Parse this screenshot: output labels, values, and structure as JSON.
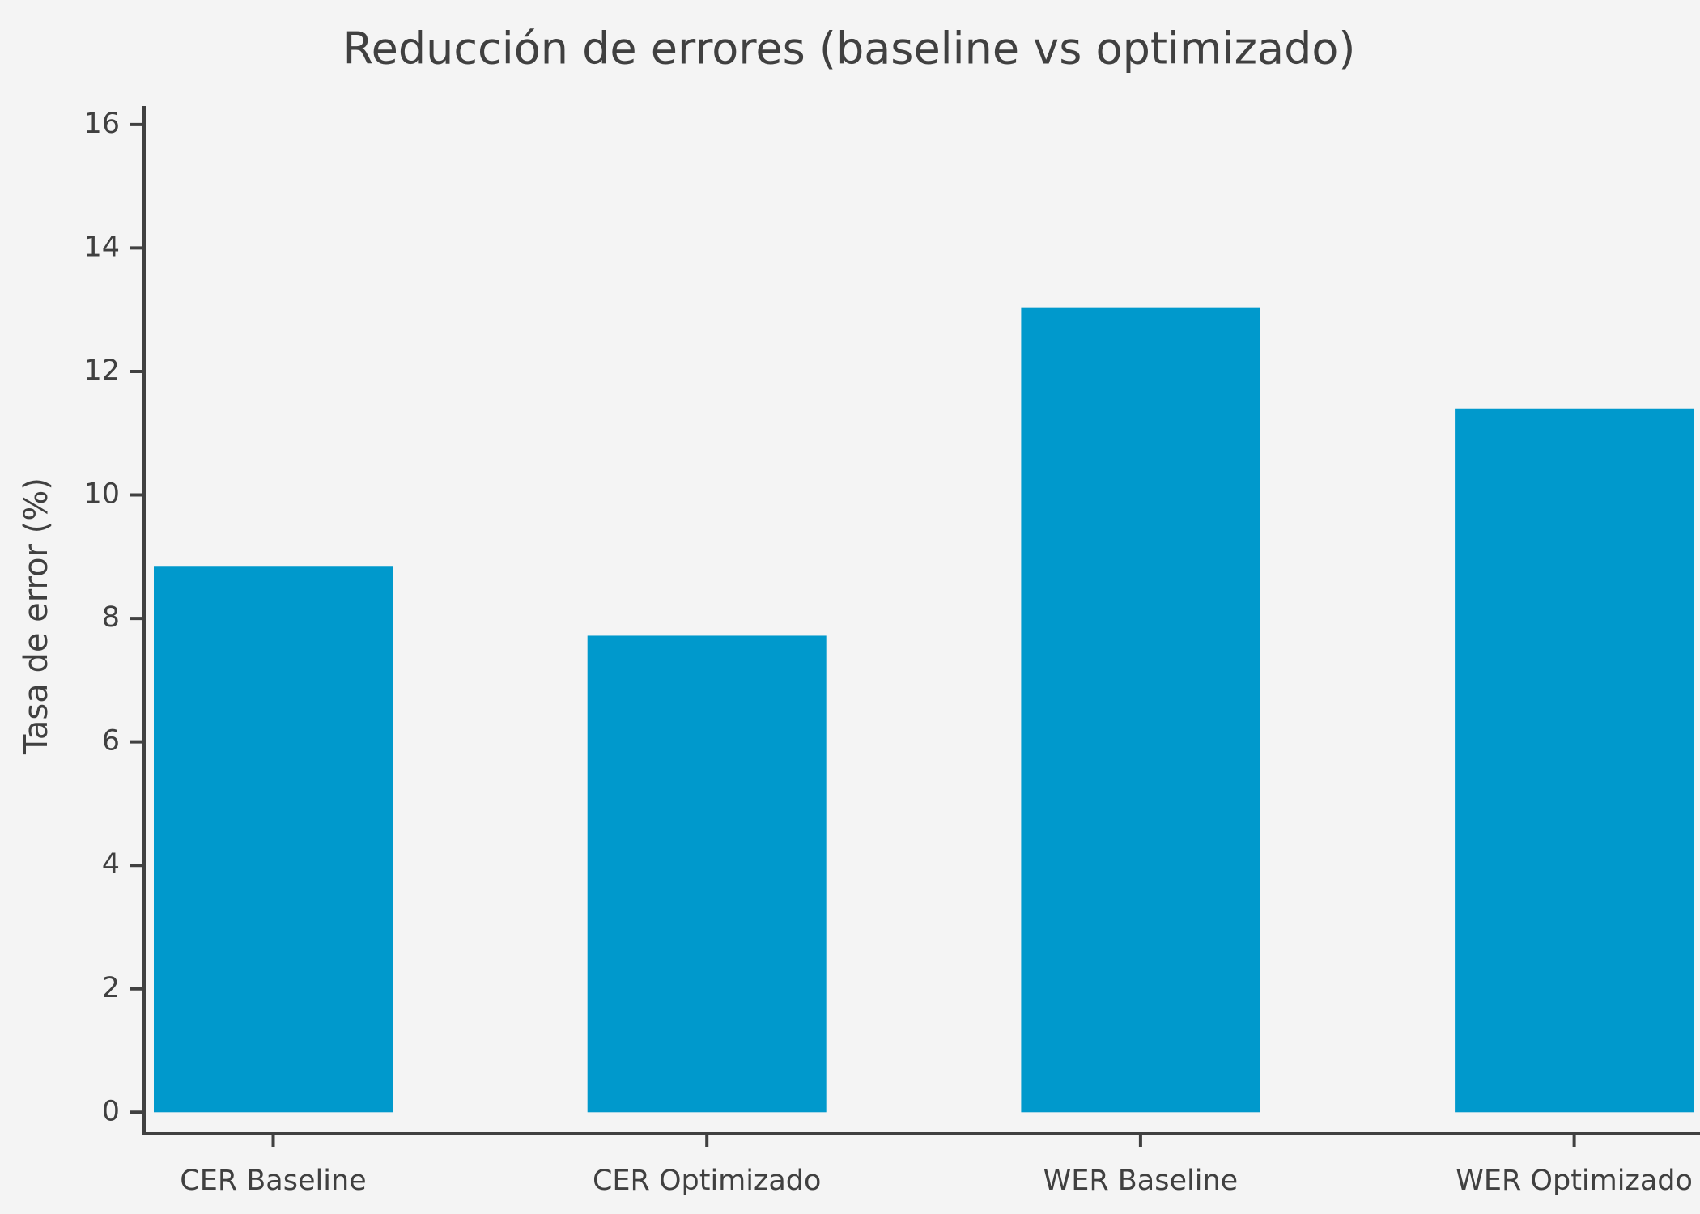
{
  "chart_data": {
    "type": "bar",
    "title": "Reducción de errores (baseline vs optimizado)",
    "y_label": "Tasa de error (%)",
    "categories": [
      "CER Baseline",
      "CER Optimizado",
      "WER Baseline",
      "WER Optimizado"
    ],
    "values": [
      8.85,
      7.72,
      13.04,
      11.4
    ],
    "color": "#0099cc",
    "ylim": [
      -0.35,
      16.3
    ],
    "yticks": [
      0,
      2,
      4,
      6,
      8,
      10,
      12,
      14,
      16
    ],
    "grid": false
  }
}
